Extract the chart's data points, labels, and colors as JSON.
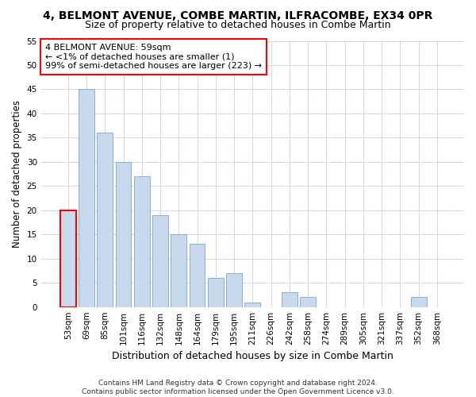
{
  "title": "4, BELMONT AVENUE, COMBE MARTIN, ILFRACOMBE, EX34 0PR",
  "subtitle": "Size of property relative to detached houses in Combe Martin",
  "xlabel": "Distribution of detached houses by size in Combe Martin",
  "ylabel": "Number of detached properties",
  "bar_color": "#c9d9ed",
  "bar_edge_color": "#7aa8cc",
  "categories": [
    "53sqm",
    "69sqm",
    "85sqm",
    "101sqm",
    "116sqm",
    "132sqm",
    "148sqm",
    "164sqm",
    "179sqm",
    "195sqm",
    "211sqm",
    "226sqm",
    "242sqm",
    "258sqm",
    "274sqm",
    "289sqm",
    "305sqm",
    "321sqm",
    "337sqm",
    "352sqm",
    "368sqm"
  ],
  "values": [
    20,
    45,
    36,
    30,
    27,
    19,
    15,
    13,
    6,
    7,
    1,
    0,
    3,
    2,
    0,
    0,
    0,
    0,
    0,
    2,
    0
  ],
  "ylim": [
    0,
    55
  ],
  "yticks": [
    0,
    5,
    10,
    15,
    20,
    25,
    30,
    35,
    40,
    45,
    50,
    55
  ],
  "annotation_text": "4 BELMONT AVENUE: 59sqm\n← <1% of detached houses are smaller (1)\n99% of semi-detached houses are larger (223) →",
  "annotation_highlight_bar": 0,
  "footer_line1": "Contains HM Land Registry data © Crown copyright and database right 2024.",
  "footer_line2": "Contains public sector information licensed under the Open Government Licence v3.0.",
  "background_color": "#ffffff",
  "grid_color": "#d0d8e8",
  "title_fontsize": 10,
  "subtitle_fontsize": 9,
  "axis_label_fontsize": 8.5,
  "tick_fontsize": 7.5,
  "annotation_fontsize": 8,
  "footer_fontsize": 6.5
}
